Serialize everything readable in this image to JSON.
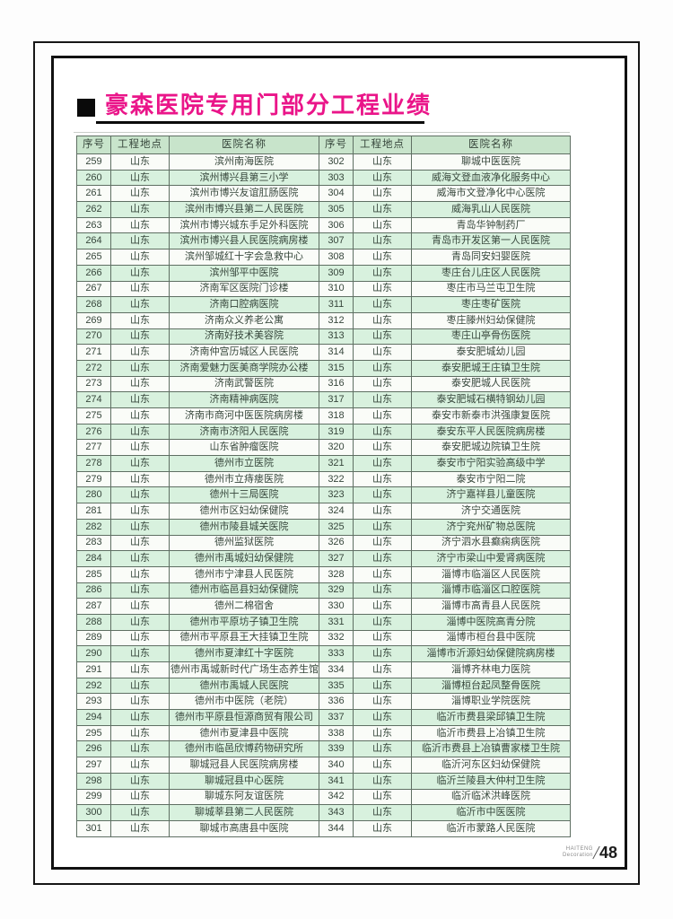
{
  "page": {
    "title": "豪森医院专用门部分工程业绩"
  },
  "footer": {
    "brand": "HAITENG",
    "brand_sub": "Decoration",
    "page_number": "48"
  },
  "colors": {
    "title_accent": "#ea1589",
    "header_bg": "#c8e4cb",
    "row_green": "#d8f1de",
    "row_white": "#fafcf8",
    "grid_line": "#5f6f63",
    "table_text": "#37473c",
    "frame_black": "#111111"
  },
  "table": {
    "headers": [
      "序号",
      "工程地点",
      "医院名称"
    ],
    "rows_left": [
      {
        "no": "259",
        "loc": "山东",
        "name": "滨州南海医院"
      },
      {
        "no": "260",
        "loc": "山东",
        "name": "滨州博兴县第三小学"
      },
      {
        "no": "261",
        "loc": "山东",
        "name": "滨州市博兴友谊肛肠医院"
      },
      {
        "no": "262",
        "loc": "山东",
        "name": "滨州市博兴县第二人民医院"
      },
      {
        "no": "263",
        "loc": "山东",
        "name": "滨州市博兴城东手足外科医院"
      },
      {
        "no": "264",
        "loc": "山东",
        "name": "滨州市博兴县人民医院病房楼"
      },
      {
        "no": "265",
        "loc": "山东",
        "name": "滨州邹城红十字会急救中心"
      },
      {
        "no": "266",
        "loc": "山东",
        "name": "滨州邹平中医院"
      },
      {
        "no": "267",
        "loc": "山东",
        "name": "济南军区医院门诊楼"
      },
      {
        "no": "268",
        "loc": "山东",
        "name": "济南口腔病医院"
      },
      {
        "no": "269",
        "loc": "山东",
        "name": "济南众义养老公寓"
      },
      {
        "no": "270",
        "loc": "山东",
        "name": "济南好技术美容院"
      },
      {
        "no": "271",
        "loc": "山东",
        "name": "济南仲宫历城区人民医院"
      },
      {
        "no": "272",
        "loc": "山东",
        "name": "济南爱魅力医美商学院办公楼"
      },
      {
        "no": "273",
        "loc": "山东",
        "name": "济南武警医院"
      },
      {
        "no": "274",
        "loc": "山东",
        "name": "济南精神病医院"
      },
      {
        "no": "275",
        "loc": "山东",
        "name": "济南市商河中医医院病房楼"
      },
      {
        "no": "276",
        "loc": "山东",
        "name": "济南市济阳人民医院"
      },
      {
        "no": "277",
        "loc": "山东",
        "name": "山东省肿瘤医院"
      },
      {
        "no": "278",
        "loc": "山东",
        "name": "德州市立医院"
      },
      {
        "no": "279",
        "loc": "山东",
        "name": "德州市立痔瘘医院"
      },
      {
        "no": "280",
        "loc": "山东",
        "name": "德州十三局医院"
      },
      {
        "no": "281",
        "loc": "山东",
        "name": "德州市区妇幼保健院"
      },
      {
        "no": "282",
        "loc": "山东",
        "name": "德州市陵县城关医院"
      },
      {
        "no": "283",
        "loc": "山东",
        "name": "德州监狱医院"
      },
      {
        "no": "284",
        "loc": "山东",
        "name": "德州市禹城妇幼保健院"
      },
      {
        "no": "285",
        "loc": "山东",
        "name": "德州市宁津县人民医院"
      },
      {
        "no": "286",
        "loc": "山东",
        "name": "德州市临邑县妇幼保健院"
      },
      {
        "no": "287",
        "loc": "山东",
        "name": "德州二棉宿舍"
      },
      {
        "no": "288",
        "loc": "山东",
        "name": "德州市平原坊子镇卫生院"
      },
      {
        "no": "289",
        "loc": "山东",
        "name": "德州市平原县王大挂镇卫生院"
      },
      {
        "no": "290",
        "loc": "山东",
        "name": "德州市夏津红十字医院"
      },
      {
        "no": "291",
        "loc": "山东",
        "name": "德州市禹城新时代广场生态养生馆"
      },
      {
        "no": "292",
        "loc": "山东",
        "name": "德州市禹城人民医院"
      },
      {
        "no": "293",
        "loc": "山东",
        "name": "德州市中医院（老院）"
      },
      {
        "no": "294",
        "loc": "山东",
        "name": "德州市平原县恒源商贸有限公司"
      },
      {
        "no": "295",
        "loc": "山东",
        "name": "德州市夏津县中医院"
      },
      {
        "no": "296",
        "loc": "山东",
        "name": "德州市临邑欣博药物研究所"
      },
      {
        "no": "297",
        "loc": "山东",
        "name": "聊城冠县人民医院病房楼"
      },
      {
        "no": "298",
        "loc": "山东",
        "name": "聊城冠县中心医院"
      },
      {
        "no": "299",
        "loc": "山东",
        "name": "聊城东阿友谊医院"
      },
      {
        "no": "300",
        "loc": "山东",
        "name": "聊城莘县第二人民医院"
      },
      {
        "no": "301",
        "loc": "山东",
        "name": "聊城市高唐县中医院"
      }
    ],
    "rows_right": [
      {
        "no": "302",
        "loc": "山东",
        "name": "聊城中医医院"
      },
      {
        "no": "303",
        "loc": "山东",
        "name": "威海文登血液净化服务中心"
      },
      {
        "no": "304",
        "loc": "山东",
        "name": "威海市文登净化中心医院"
      },
      {
        "no": "305",
        "loc": "山东",
        "name": "威海乳山人民医院"
      },
      {
        "no": "306",
        "loc": "山东",
        "name": "青岛华钟制药厂"
      },
      {
        "no": "307",
        "loc": "山东",
        "name": "青岛市开发区第一人民医院"
      },
      {
        "no": "308",
        "loc": "山东",
        "name": "青岛同安妇婴医院"
      },
      {
        "no": "309",
        "loc": "山东",
        "name": "枣庄台儿庄区人民医院"
      },
      {
        "no": "310",
        "loc": "山东",
        "name": "枣庄市马兰屯卫生院"
      },
      {
        "no": "311",
        "loc": "山东",
        "name": "枣庄枣矿医院"
      },
      {
        "no": "312",
        "loc": "山东",
        "name": "枣庄滕州妇幼保健院"
      },
      {
        "no": "313",
        "loc": "山东",
        "name": "枣庄山亭骨伤医院"
      },
      {
        "no": "314",
        "loc": "山东",
        "name": "泰安肥城幼儿园"
      },
      {
        "no": "315",
        "loc": "山东",
        "name": "泰安肥城王庄镇卫生院"
      },
      {
        "no": "316",
        "loc": "山东",
        "name": "泰安肥城人民医院"
      },
      {
        "no": "317",
        "loc": "山东",
        "name": "泰安肥城石横特钢幼儿园"
      },
      {
        "no": "318",
        "loc": "山东",
        "name": "泰安市新泰市洪强康复医院"
      },
      {
        "no": "319",
        "loc": "山东",
        "name": "泰安东平人民医院病房楼"
      },
      {
        "no": "320",
        "loc": "山东",
        "name": "泰安肥城边院镇卫生院"
      },
      {
        "no": "321",
        "loc": "山东",
        "name": "泰安市宁阳实验高级中学"
      },
      {
        "no": "322",
        "loc": "山东",
        "name": "泰安市宁阳二院"
      },
      {
        "no": "323",
        "loc": "山东",
        "name": "济宁嘉祥县儿童医院"
      },
      {
        "no": "324",
        "loc": "山东",
        "name": "济宁交通医院"
      },
      {
        "no": "325",
        "loc": "山东",
        "name": "济宁兖州矿物总医院"
      },
      {
        "no": "326",
        "loc": "山东",
        "name": "济宁泗水县癫痫病医院"
      },
      {
        "no": "327",
        "loc": "山东",
        "name": "济宁市梁山中爱肾病医院"
      },
      {
        "no": "328",
        "loc": "山东",
        "name": "淄博市临淄区人民医院"
      },
      {
        "no": "329",
        "loc": "山东",
        "name": "淄博市临淄区口腔医院"
      },
      {
        "no": "330",
        "loc": "山东",
        "name": "淄博市高青县人民医院"
      },
      {
        "no": "331",
        "loc": "山东",
        "name": "淄博中医院高青分院"
      },
      {
        "no": "332",
        "loc": "山东",
        "name": "淄博市桓台县中医院"
      },
      {
        "no": "333",
        "loc": "山东",
        "name": "淄博市沂源妇幼保健院病房楼"
      },
      {
        "no": "334",
        "loc": "山东",
        "name": "淄博齐林电力医院"
      },
      {
        "no": "335",
        "loc": "山东",
        "name": "淄博桓台起凤整骨医院"
      },
      {
        "no": "336",
        "loc": "山东",
        "name": "淄博职业学院医院"
      },
      {
        "no": "337",
        "loc": "山东",
        "name": "临沂市费县梁邱镇卫生院"
      },
      {
        "no": "338",
        "loc": "山东",
        "name": "临沂市费县上冶镇卫生院"
      },
      {
        "no": "339",
        "loc": "山东",
        "name": "临沂市费县上冶镇曹家楼卫生院"
      },
      {
        "no": "340",
        "loc": "山东",
        "name": "临沂河东区妇幼保健院"
      },
      {
        "no": "341",
        "loc": "山东",
        "name": "临沂兰陵县大仲村卫生院"
      },
      {
        "no": "342",
        "loc": "山东",
        "name": "临沂临沭洪峰医院"
      },
      {
        "no": "343",
        "loc": "山东",
        "name": "临沂市中医医院"
      },
      {
        "no": "344",
        "loc": "山东",
        "name": "临沂市蒙路人民医院"
      }
    ]
  }
}
